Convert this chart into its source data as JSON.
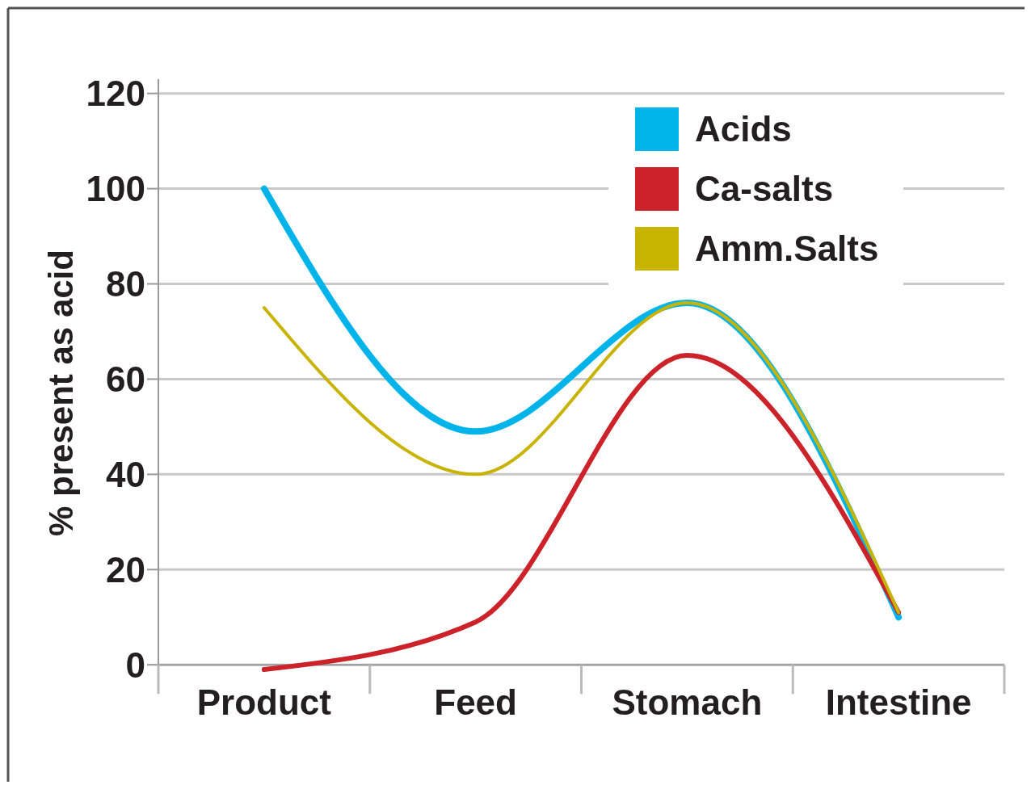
{
  "chart_data": {
    "type": "line",
    "ylabel": "% present as acid",
    "categories": [
      "Product",
      "Feed",
      "Stomach",
      "Intestine"
    ],
    "series": [
      {
        "name": "Acids",
        "color": "#00b4ea",
        "values": [
          100,
          49,
          76,
          10
        ]
      },
      {
        "name": "Ca-salts",
        "color": "#cc2229",
        "values": [
          -1,
          9,
          65,
          11
        ]
      },
      {
        "name": "Amm.Salts",
        "color": "#c8b400",
        "values": [
          75,
          40,
          76,
          11
        ]
      }
    ],
    "ylim": [
      -2,
      123
    ],
    "yticks": [
      0,
      20,
      40,
      60,
      80,
      100,
      120
    ],
    "grid": "y",
    "legend": "top right",
    "marker": "none",
    "line_style": "solid"
  }
}
